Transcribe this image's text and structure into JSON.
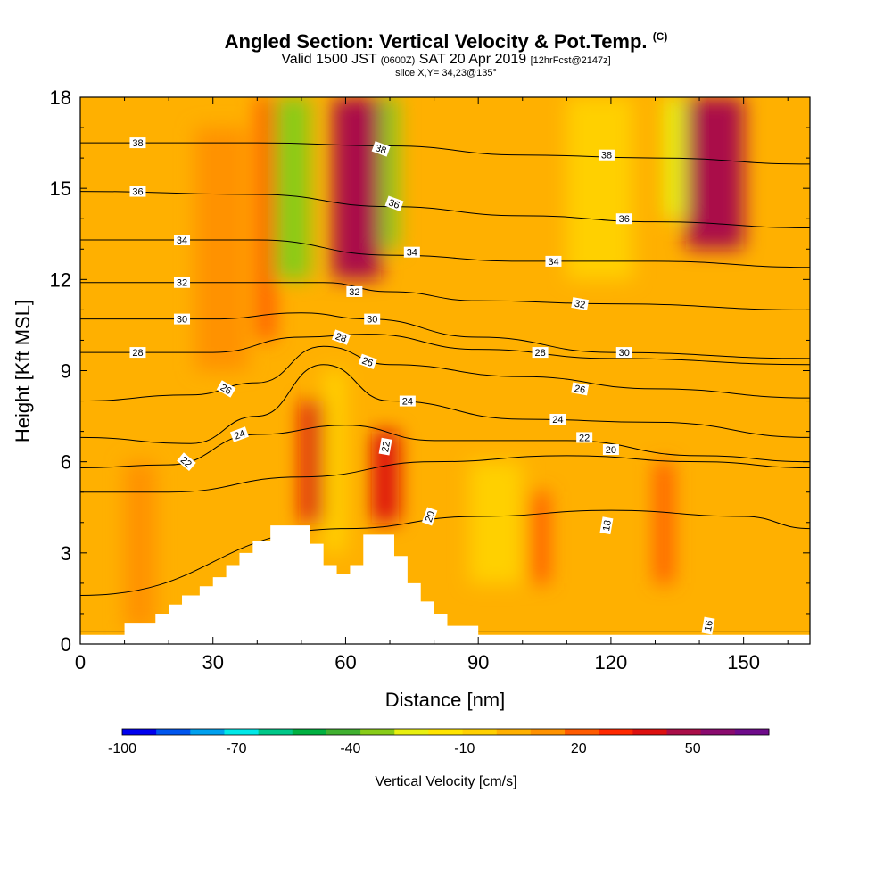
{
  "title": {
    "main": "Angled Section: Vertical Velocity & Pot.Temp.",
    "copyright": "(C)",
    "valid_pre": "Valid 1500 JST",
    "valid_utc": "(0600Z)",
    "valid_date": "SAT 20 Apr 2019",
    "fcst": "[12hrFcst@2147z]",
    "slice": "slice X,Y= 34,23@135°"
  },
  "chart_data": {
    "type": "heatmap",
    "xlabel": "Distance [nm]",
    "ylabel": "Height [Kft MSL]",
    "xlim": [
      0,
      165
    ],
    "ylim": [
      0,
      18
    ],
    "x_ticks": [
      0,
      30,
      60,
      90,
      120,
      150
    ],
    "y_ticks": [
      0,
      3,
      6,
      9,
      12,
      15,
      18
    ],
    "colorbar": {
      "label": "Vertical Velocity [cm/s]",
      "tick_labels": [
        "-100",
        "-70",
        "-40",
        "-10",
        "20",
        "50"
      ],
      "tick_values": [
        -100,
        -70,
        -40,
        -10,
        20,
        50
      ],
      "range": [
        -100,
        70
      ],
      "colors": [
        "#0000ee",
        "#0055ee",
        "#00a0ee",
        "#00e8e8",
        "#00c888",
        "#00b040",
        "#40b030",
        "#88cc18",
        "#e8f010",
        "#ffe400",
        "#ffd000",
        "#ffb000",
        "#ff9200",
        "#ff5a00",
        "#ff2800",
        "#dd1010",
        "#aa0e48",
        "#8a0a6e",
        "#6e0a8a"
      ]
    },
    "terrain": [
      [
        0,
        0.3
      ],
      [
        10,
        0.3
      ],
      [
        10,
        0.7
      ],
      [
        17,
        0.7
      ],
      [
        17,
        1
      ],
      [
        20,
        1
      ],
      [
        20,
        1.3
      ],
      [
        23,
        1.3
      ],
      [
        23,
        1.6
      ],
      [
        27,
        1.6
      ],
      [
        27,
        1.9
      ],
      [
        30,
        1.9
      ],
      [
        30,
        2.2
      ],
      [
        33,
        2.2
      ],
      [
        33,
        2.6
      ],
      [
        36,
        2.6
      ],
      [
        36,
        3
      ],
      [
        39,
        3
      ],
      [
        39,
        3.4
      ],
      [
        43,
        3.4
      ],
      [
        43,
        3.9
      ],
      [
        52,
        3.9
      ],
      [
        52,
        3.3
      ],
      [
        55,
        3.3
      ],
      [
        55,
        2.6
      ],
      [
        58,
        2.6
      ],
      [
        58,
        2.3
      ],
      [
        61,
        2.3
      ],
      [
        61,
        2.6
      ],
      [
        64,
        2.6
      ],
      [
        64,
        3.6
      ],
      [
        71,
        3.6
      ],
      [
        71,
        2.9
      ],
      [
        74,
        2.9
      ],
      [
        74,
        2
      ],
      [
        77,
        2
      ],
      [
        77,
        1.4
      ],
      [
        80,
        1.4
      ],
      [
        80,
        1
      ],
      [
        83,
        1
      ],
      [
        83,
        0.6
      ],
      [
        90,
        0.6
      ],
      [
        90,
        0.3
      ],
      [
        165,
        0.3
      ]
    ],
    "velocity_cells": [
      {
        "x": [
          10,
          17
        ],
        "y": [
          0.5,
          6
        ],
        "value": 15
      },
      {
        "x": [
          26,
          38
        ],
        "y": [
          9,
          17
        ],
        "value": 12
      },
      {
        "x": [
          40,
          44
        ],
        "y": [
          10,
          18
        ],
        "value": 20
      },
      {
        "x": [
          44,
          52
        ],
        "y": [
          12,
          18
        ],
        "value": -30
      },
      {
        "x": [
          50,
          56
        ],
        "y": [
          4,
          8
        ],
        "value": 40
      },
      {
        "x": [
          55,
          60
        ],
        "y": [
          3,
          9
        ],
        "value": -8
      },
      {
        "x": [
          57,
          68
        ],
        "y": [
          12,
          18
        ],
        "value": 45
      },
      {
        "x": [
          66,
          72
        ],
        "y": [
          4,
          7
        ],
        "value": 40
      },
      {
        "x": [
          68,
          72
        ],
        "y": [
          13,
          18
        ],
        "value": -30
      },
      {
        "x": [
          88,
          100
        ],
        "y": [
          2,
          6
        ],
        "value": -5
      },
      {
        "x": [
          102,
          106
        ],
        "y": [
          2,
          5
        ],
        "value": 20
      },
      {
        "x": [
          110,
          125
        ],
        "y": [
          12,
          18
        ],
        "value": -8
      },
      {
        "x": [
          130,
          134
        ],
        "y": [
          2,
          6
        ],
        "value": 25
      },
      {
        "x": [
          132,
          137
        ],
        "y": [
          14,
          18
        ],
        "value": -25
      },
      {
        "x": [
          137,
          150
        ],
        "y": [
          13,
          18
        ],
        "value": 45
      }
    ],
    "contours": [
      {
        "label": "16",
        "points": [
          [
            0,
            0.4
          ],
          [
            80,
            0.4
          ],
          [
            140,
            0.4
          ],
          [
            165,
            0.4
          ]
        ]
      },
      {
        "label": "18",
        "points": [
          [
            0,
            1.6
          ],
          [
            60,
            3.8
          ],
          [
            90,
            4.2
          ],
          [
            120,
            4.4
          ],
          [
            150,
            4.2
          ],
          [
            165,
            3.8
          ]
        ]
      },
      {
        "label": "20",
        "points": [
          [
            0,
            5.0
          ],
          [
            20,
            5.0
          ],
          [
            50,
            5.5
          ],
          [
            80,
            6.0
          ],
          [
            110,
            6.2
          ],
          [
            140,
            6.0
          ],
          [
            165,
            5.8
          ]
        ]
      },
      {
        "label": "22",
        "points": [
          [
            0,
            5.8
          ],
          [
            20,
            5.9
          ],
          [
            40,
            6.9
          ],
          [
            60,
            7.2
          ],
          [
            80,
            6.7
          ],
          [
            110,
            6.7
          ],
          [
            140,
            6.2
          ],
          [
            165,
            6.0
          ]
        ]
      },
      {
        "label": "24",
        "points": [
          [
            0,
            6.8
          ],
          [
            25,
            6.6
          ],
          [
            40,
            7.5
          ],
          [
            55,
            9.2
          ],
          [
            70,
            8.0
          ],
          [
            100,
            7.4
          ],
          [
            130,
            7.3
          ],
          [
            165,
            6.8
          ]
        ]
      },
      {
        "label": "26",
        "points": [
          [
            0,
            8.0
          ],
          [
            25,
            8.2
          ],
          [
            40,
            8.6
          ],
          [
            55,
            9.8
          ],
          [
            70,
            9.2
          ],
          [
            100,
            8.8
          ],
          [
            130,
            8.4
          ],
          [
            165,
            8.1
          ]
        ]
      },
      {
        "label": "28",
        "points": [
          [
            0,
            9.6
          ],
          [
            30,
            9.6
          ],
          [
            50,
            10.1
          ],
          [
            65,
            10.2
          ],
          [
            90,
            9.7
          ],
          [
            120,
            9.4
          ],
          [
            165,
            9.2
          ]
        ]
      },
      {
        "label": "30",
        "points": [
          [
            0,
            10.7
          ],
          [
            30,
            10.7
          ],
          [
            50,
            10.9
          ],
          [
            65,
            10.7
          ],
          [
            90,
            10.1
          ],
          [
            120,
            9.6
          ],
          [
            165,
            9.4
          ]
        ]
      },
      {
        "label": "32",
        "points": [
          [
            0,
            11.9
          ],
          [
            30,
            11.9
          ],
          [
            55,
            11.9
          ],
          [
            70,
            11.6
          ],
          [
            90,
            11.3
          ],
          [
            120,
            11.2
          ],
          [
            165,
            11.0
          ]
        ]
      },
      {
        "label": "34",
        "points": [
          [
            0,
            13.3
          ],
          [
            40,
            13.3
          ],
          [
            70,
            12.8
          ],
          [
            100,
            12.6
          ],
          [
            130,
            12.6
          ],
          [
            165,
            12.4
          ]
        ]
      },
      {
        "label": "36",
        "points": [
          [
            0,
            14.9
          ],
          [
            40,
            14.8
          ],
          [
            70,
            14.4
          ],
          [
            100,
            14.1
          ],
          [
            130,
            13.9
          ],
          [
            165,
            13.7
          ]
        ]
      },
      {
        "label": "38",
        "points": [
          [
            0,
            16.5
          ],
          [
            40,
            16.5
          ],
          [
            70,
            16.4
          ],
          [
            100,
            16.1
          ],
          [
            130,
            16.0
          ],
          [
            165,
            15.8
          ]
        ]
      }
    ],
    "contour_labels": [
      {
        "text": "38",
        "x": 13,
        "y": 16.5,
        "angle": 0
      },
      {
        "text": "36",
        "x": 13,
        "y": 14.9,
        "angle": 0
      },
      {
        "text": "34",
        "x": 23,
        "y": 13.3,
        "angle": 0
      },
      {
        "text": "32",
        "x": 23,
        "y": 11.9,
        "angle": 0
      },
      {
        "text": "30",
        "x": 23,
        "y": 10.7,
        "angle": 0
      },
      {
        "text": "28",
        "x": 13,
        "y": 9.6,
        "angle": 0
      },
      {
        "text": "26",
        "x": 33,
        "y": 8.4,
        "angle": 30
      },
      {
        "text": "24",
        "x": 36,
        "y": 6.9,
        "angle": -20
      },
      {
        "text": "22",
        "x": 24,
        "y": 6.0,
        "angle": 40
      },
      {
        "text": "38",
        "x": 68,
        "y": 16.3,
        "angle": 20
      },
      {
        "text": "36",
        "x": 71,
        "y": 14.5,
        "angle": 20
      },
      {
        "text": "34",
        "x": 75,
        "y": 12.9,
        "angle": 0
      },
      {
        "text": "32",
        "x": 62,
        "y": 11.6,
        "angle": 0
      },
      {
        "text": "30",
        "x": 66,
        "y": 10.7,
        "angle": 0
      },
      {
        "text": "28",
        "x": 59,
        "y": 10.1,
        "angle": 20
      },
      {
        "text": "26",
        "x": 65,
        "y": 9.3,
        "angle": 20
      },
      {
        "text": "24",
        "x": 74,
        "y": 8.0,
        "angle": 0
      },
      {
        "text": "22",
        "x": 69,
        "y": 6.5,
        "angle": -80
      },
      {
        "text": "20",
        "x": 79,
        "y": 4.2,
        "angle": -70
      },
      {
        "text": "38",
        "x": 119,
        "y": 16.1,
        "angle": 0
      },
      {
        "text": "36",
        "x": 123,
        "y": 14.0,
        "angle": 0
      },
      {
        "text": "34",
        "x": 107,
        "y": 12.6,
        "angle": 0
      },
      {
        "text": "32",
        "x": 113,
        "y": 11.2,
        "angle": 10
      },
      {
        "text": "30",
        "x": 123,
        "y": 9.6,
        "angle": 0
      },
      {
        "text": "28",
        "x": 104,
        "y": 9.6,
        "angle": 0
      },
      {
        "text": "26",
        "x": 113,
        "y": 8.4,
        "angle": 10
      },
      {
        "text": "24",
        "x": 108,
        "y": 7.4,
        "angle": 0
      },
      {
        "text": "22",
        "x": 114,
        "y": 6.8,
        "angle": 0
      },
      {
        "text": "20",
        "x": 120,
        "y": 6.4,
        "angle": 0
      },
      {
        "text": "18",
        "x": 119,
        "y": 3.9,
        "angle": -80
      },
      {
        "text": "16",
        "x": 142,
        "y": 0.6,
        "angle": -80
      }
    ]
  }
}
